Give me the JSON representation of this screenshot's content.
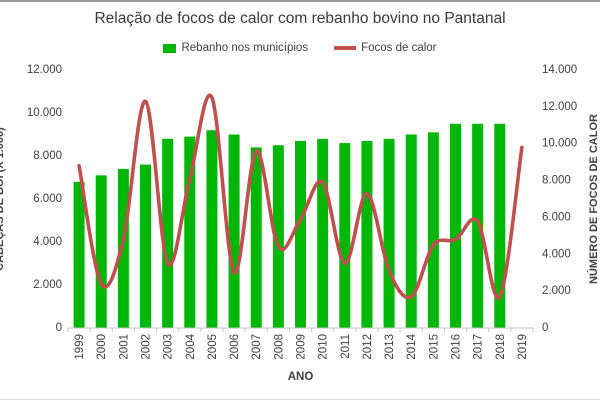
{
  "figure": {
    "title": "Relação de focos de calor com rebanho bovino no Pantanal"
  },
  "chart_data": {
    "type": "bar",
    "subtype": "bar-and-smooth-line-combo",
    "categories": [
      "1999",
      "2000",
      "2001",
      "2002",
      "2003",
      "2004",
      "2005",
      "2006",
      "2007",
      "2008",
      "2009",
      "2010",
      "2011",
      "2012",
      "2013",
      "2014",
      "2015",
      "2016",
      "2017",
      "2018",
      "2019"
    ],
    "series": [
      {
        "name": "Rebanho nos municípios",
        "type": "bar",
        "axis": "left",
        "color": "#00B606",
        "values": [
          6800,
          7100,
          7400,
          7600,
          8800,
          8900,
          9200,
          9000,
          8400,
          8500,
          8700,
          8800,
          8600,
          8700,
          8800,
          9000,
          9100,
          9500,
          9500,
          9500,
          null
        ]
      },
      {
        "name": "Focos de calor",
        "type": "line",
        "axis": "right",
        "color": "#C0504D",
        "smooth": true,
        "values": [
          8800,
          2400,
          4800,
          12300,
          3500,
          8100,
          12500,
          3000,
          9600,
          4400,
          5900,
          7900,
          3500,
          7300,
          3100,
          1700,
          4500,
          4800,
          5800,
          1700,
          9800
        ]
      }
    ],
    "x_axis": {
      "title": "ANO"
    },
    "left_axis": {
      "title": "CABEÇAS DE BOI (X 1.000)",
      "min": 0,
      "max": 12000,
      "step": 2000,
      "tick_labels": [
        "0",
        "2.000",
        "4.000",
        "6.000",
        "8.000",
        "10.000",
        "12.000"
      ]
    },
    "right_axis": {
      "title": "NÚMERO DE FOCOS DE CALOR",
      "min": 0,
      "max": 14000,
      "step": 2000,
      "tick_labels": [
        "0",
        "2.000",
        "4.000",
        "6.000",
        "8.000",
        "10.000",
        "12.000",
        "14.000"
      ]
    },
    "legend_position": "top",
    "grid": false,
    "axis_text_color": "#404040",
    "axis_line_color": "#c6c6c6"
  }
}
